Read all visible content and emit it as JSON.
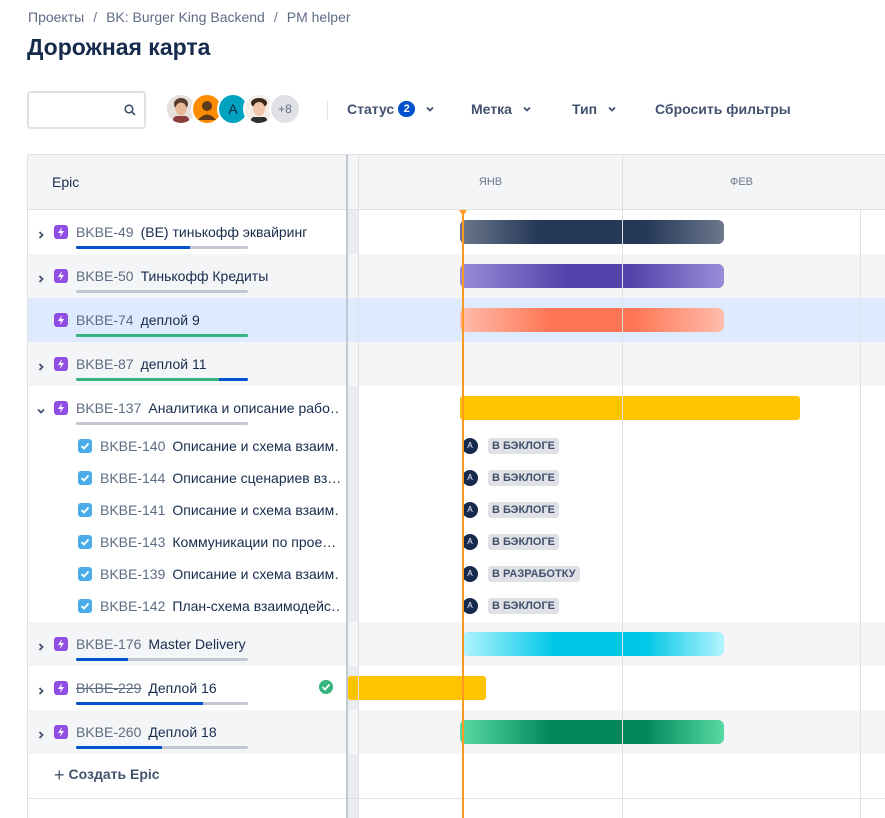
{
  "breadcrumb": [
    "Проекты",
    "BK: Burger King Backend",
    "PM helper"
  ],
  "page_title": "Дорожная карта",
  "search": {
    "placeholder": "",
    "value": ""
  },
  "avatars": {
    "more_label": "+8",
    "letter": "A"
  },
  "filters": {
    "status_label": "Статус",
    "status_count": "2",
    "label_label": "Метка",
    "type_label": "Тип",
    "reset_label": "Сбросить фильтры"
  },
  "timeline": {
    "months": [
      "ЯНВ",
      "ФЕВ"
    ]
  },
  "left_header": "Epic",
  "create_label": "Создать Epic",
  "colors": {
    "accent": "#0052cc",
    "today": "#ff991f",
    "done": "#36b37e",
    "epic": "#904ee2",
    "task": "#4bade8"
  },
  "epics": [
    {
      "key": "BKBE-49",
      "title": "(BE) тинькофф эквайринг",
      "expanded": false,
      "done": false,
      "progress_done": 0,
      "progress_inprogress": 0.66,
      "bar_color": "navy"
    },
    {
      "key": "BKBE-50",
      "title": "Тинькофф Кредиты",
      "expanded": false,
      "done": false,
      "progress_done": 0,
      "progress_inprogress": 0,
      "bar_color": "purple"
    },
    {
      "key": "BKBE-74",
      "title": "деплой 9",
      "expanded": false,
      "done": false,
      "progress_done": 1.0,
      "progress_inprogress": 0,
      "bar_color": "coral",
      "selected": true,
      "has_children": false
    },
    {
      "key": "BKBE-87",
      "title": "деплой 11",
      "expanded": false,
      "done": false,
      "progress_done": 0.83,
      "progress_inprogress": 0.17,
      "bar_color": "none"
    },
    {
      "key": "BKBE-137",
      "title": "Аналитика и описание рабо…",
      "expanded": true,
      "done": false,
      "progress_done": 0,
      "progress_inprogress": 0,
      "bar_color": "yellow",
      "children": [
        {
          "key": "BKBE-140",
          "title": "Описание и схема взаим…",
          "status": "В БЭКЛОГЕ"
        },
        {
          "key": "BKBE-144",
          "title": "Описание сценариев вз…",
          "status": "В БЭКЛОГЕ"
        },
        {
          "key": "BKBE-141",
          "title": "Описание и схема взаим…",
          "status": "В БЭКЛОГЕ"
        },
        {
          "key": "BKBE-143",
          "title": "Коммуникации по прое…",
          "status": "В БЭКЛОГЕ"
        },
        {
          "key": "BKBE-139",
          "title": "Описание и схема взаим…",
          "status": "В РАЗРАБОТКУ"
        },
        {
          "key": "BKBE-142",
          "title": "План-схема взаимодейс…",
          "status": "В БЭКЛОГЕ"
        }
      ]
    },
    {
      "key": "BKBE-176",
      "title": "Master Delivery",
      "expanded": false,
      "done": false,
      "progress_done": 0,
      "progress_inprogress": 0.3,
      "bar_color": "cyan"
    },
    {
      "key": "BKBE-229",
      "title": "Деплой 16",
      "expanded": false,
      "done": true,
      "progress_done": 0,
      "progress_inprogress": 0.74,
      "bar_color": "yellow"
    },
    {
      "key": "BKBE-260",
      "title": "Деплой 18",
      "expanded": false,
      "done": false,
      "progress_done": 0,
      "progress_inprogress": 0.5,
      "bar_color": "green"
    }
  ]
}
